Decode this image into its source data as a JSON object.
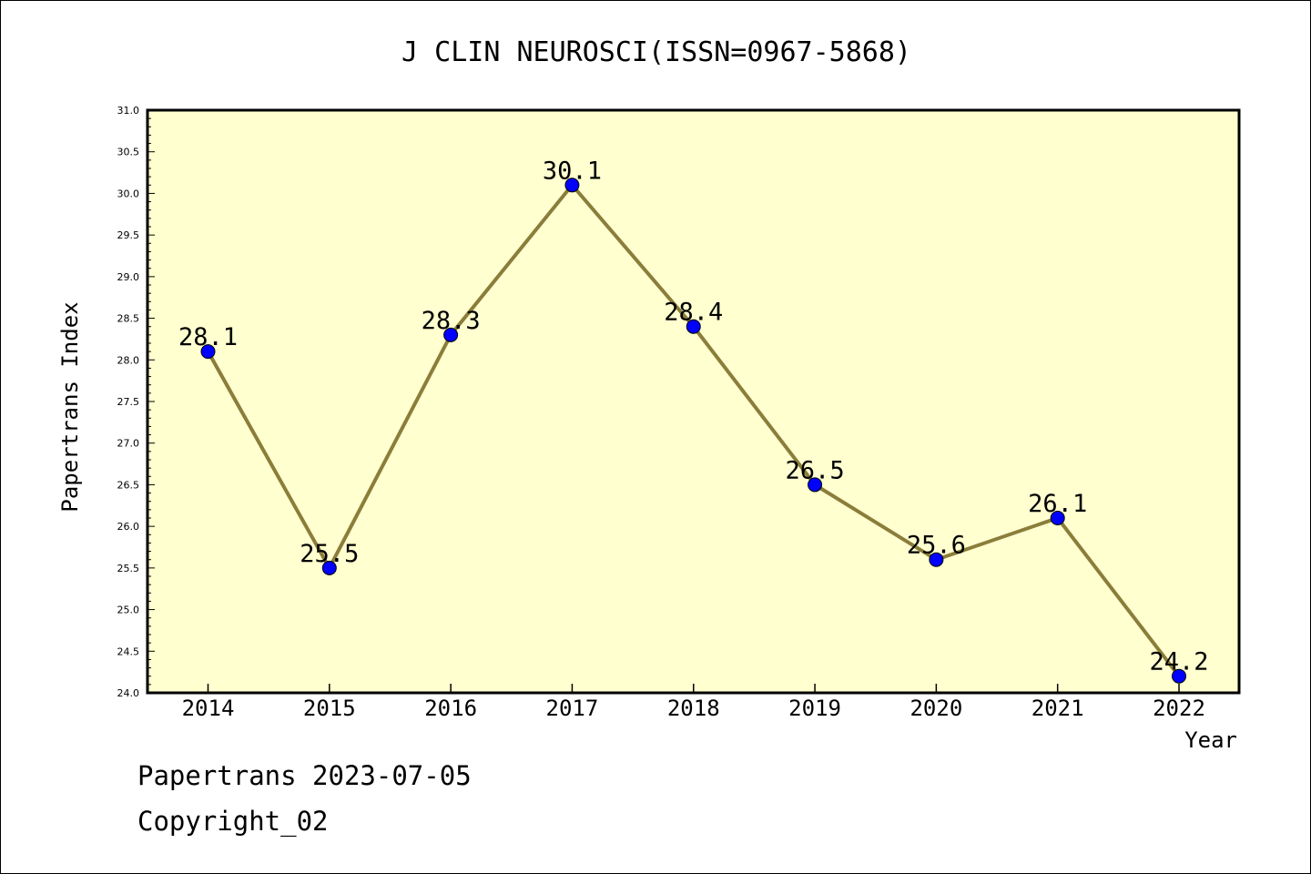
{
  "chart_data": {
    "type": "line",
    "title": "J CLIN NEUROSCI(ISSN=0967-5868)",
    "xlabel": "Year",
    "ylabel": "Papertrans Index",
    "categories": [
      "2014",
      "2015",
      "2016",
      "2017",
      "2018",
      "2019",
      "2020",
      "2021",
      "2022"
    ],
    "values": [
      28.1,
      25.5,
      28.3,
      30.1,
      28.4,
      26.5,
      25.6,
      26.1,
      24.2
    ],
    "data_labels": [
      "28.1",
      "25.5",
      "28.3",
      "30.1",
      "28.4",
      "26.5",
      "25.6",
      "26.1",
      "24.2"
    ],
    "ylim": [
      24.0,
      31.0
    ],
    "y_ticks": [
      "24.0",
      "24.5",
      "25.0",
      "25.5",
      "26.0",
      "26.5",
      "27.0",
      "27.5",
      "28.0",
      "28.5",
      "29.0",
      "29.5",
      "30.0",
      "30.5",
      "31.0"
    ],
    "grid": false,
    "colors": {
      "plot_background": "#ffffd0",
      "line": "#8b7d3a",
      "marker": "#0000ff"
    }
  },
  "footer": {
    "date_text": "Papertrans 2023-07-05",
    "copyright_text": "Copyright_02"
  }
}
